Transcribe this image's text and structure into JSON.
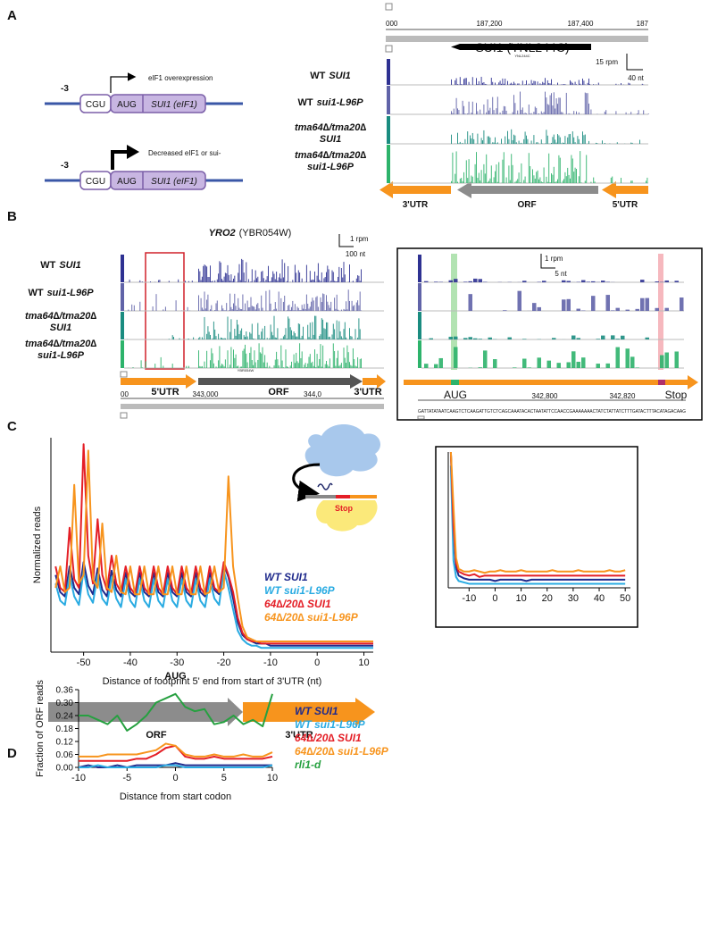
{
  "panel_a": {
    "label": "A",
    "constructs": [
      {
        "position": "-3",
        "boxes": [
          "CGU",
          "AUG",
          "SUI1 (eIF1)"
        ],
        "arrow_label": "eIF1 overexpression"
      },
      {
        "position": "-3",
        "boxes": [
          "CGU",
          "AUG",
          "SUI1 (eIF1)"
        ],
        "arrow_label": "Decreased eIF1 or sui-"
      }
    ],
    "browser": {
      "ruler": [
        "000",
        "187,200",
        "187,400",
        "187"
      ],
      "gene": "SUI1 (YNL244C)",
      "gene_id": "YNL244C",
      "scale_y": "15 rpm",
      "scale_x": "40 nt"
    },
    "regions": [
      "3'UTR",
      "ORF",
      "5'UTR"
    ]
  },
  "strains": [
    {
      "strain": "WT",
      "allele": "SUI1"
    },
    {
      "strain": "WT",
      "allele": "sui1-L96P"
    },
    {
      "strain": "tma64∆/tma20∆",
      "allele": "SUI1"
    },
    {
      "strain": "tma64∆/tma20∆",
      "allele": "sui1-L96P"
    }
  ],
  "panel_b": {
    "label": "B",
    "title_gene": "YRO2",
    "title_id": "(YBR054W)",
    "scale_y": "1 rpm",
    "scale_x": "100 nt",
    "gene_id": "YBR054W",
    "regions": [
      "5'UTR",
      "ORF",
      "3'UTR"
    ],
    "ruler": [
      "00",
      "343,000",
      "344,0"
    ],
    "inset": {
      "scale_y": "1 rpm",
      "scale_x": "5 nt",
      "start": "AUG",
      "stop": "Stop",
      "ruler": [
        "342,800",
        "342,820"
      ],
      "sequence": "GATTATATAATCAAGTCTCAAGATTGTCTCAGCAAATACACTAATATTCCAACCGAAAAAAACTATCTATTATCTTTGATACTTTACATAGACAAG"
    }
  },
  "panel_c": {
    "label": "C",
    "stop": "Stop",
    "regions": [
      "ORF",
      "3'UTR"
    ]
  },
  "panel_d": {
    "label": "D"
  },
  "chart_data": [
    {
      "type": "line",
      "y_label": "Normalized reads",
      "x_label": "Distance of footprint 5' end from start of 3'UTR (nt)",
      "xlim": [
        -57,
        12
      ],
      "ylim": [
        0,
        100
      ],
      "xticks": [
        -50,
        -40,
        -30,
        -20,
        -10,
        0,
        10
      ],
      "x": [
        -56,
        -55,
        -54,
        -53,
        -52,
        -51,
        -50,
        -49,
        -48,
        -47,
        -46,
        -45,
        -44,
        -43,
        -42,
        -41,
        -40,
        -39,
        -38,
        -37,
        -36,
        -35,
        -34,
        -33,
        -32,
        -31,
        -30,
        -29,
        -28,
        -27,
        -26,
        -25,
        -24,
        -23,
        -22,
        -21,
        -20,
        -19,
        -18,
        -17,
        -16,
        -15,
        -14,
        -13,
        -12,
        -11,
        -10,
        -9,
        -8,
        -7,
        -6,
        -5,
        -4,
        -3,
        -2,
        -1,
        0,
        1,
        2,
        3,
        4,
        5,
        6,
        7,
        8,
        9,
        10,
        11,
        12
      ],
      "series": [
        {
          "name": "WT SUI1",
          "color": "#1f2a8c",
          "values": [
            36,
            28,
            26,
            40,
            30,
            27,
            42,
            31,
            27,
            39,
            29,
            26,
            38,
            29,
            26,
            37,
            28,
            26,
            37,
            28,
            26,
            37,
            28,
            26,
            37,
            28,
            26,
            37,
            28,
            26,
            37,
            28,
            26,
            37,
            29,
            27,
            41,
            35,
            25,
            14,
            8,
            6,
            5,
            4,
            4,
            4,
            3,
            3,
            3,
            3,
            3,
            3,
            3,
            3,
            3,
            3,
            3,
            3,
            3,
            3,
            3,
            3,
            3,
            3,
            3,
            3,
            3,
            3,
            3
          ]
        },
        {
          "name": "WT sui1-L96P",
          "color": "#29abe2",
          "values": [
            32,
            24,
            22,
            36,
            26,
            22,
            38,
            27,
            23,
            36,
            25,
            22,
            35,
            25,
            21,
            34,
            24,
            21,
            34,
            24,
            21,
            34,
            24,
            21,
            34,
            24,
            21,
            34,
            24,
            21,
            34,
            24,
            21,
            34,
            25,
            22,
            38,
            30,
            20,
            10,
            6,
            4,
            3,
            3,
            2,
            2,
            2,
            2,
            2,
            2,
            2,
            2,
            2,
            2,
            2,
            2,
            2,
            2,
            2,
            2,
            2,
            2,
            2,
            2,
            2,
            2,
            2,
            2,
            2
          ]
        },
        {
          "name": "64∆/20∆ SUI1",
          "color": "#e41e26",
          "values": [
            40,
            30,
            28,
            58,
            34,
            30,
            97,
            45,
            32,
            62,
            36,
            29,
            45,
            32,
            28,
            40,
            30,
            27,
            40,
            30,
            27,
            40,
            30,
            27,
            40,
            30,
            27,
            40,
            30,
            27,
            40,
            30,
            27,
            40,
            30,
            28,
            42,
            36,
            28,
            16,
            9,
            6,
            5,
            5,
            4,
            4,
            4,
            4,
            4,
            4,
            4,
            4,
            4,
            4,
            4,
            4,
            4,
            4,
            4,
            4,
            4,
            4,
            4,
            4,
            4,
            4,
            4,
            4,
            4
          ]
        },
        {
          "name": "64∆/20∆ sui1-L96P",
          "color": "#f7941d",
          "values": [
            30,
            40,
            28,
            30,
            78,
            32,
            36,
            94,
            34,
            30,
            60,
            30,
            28,
            45,
            28,
            27,
            40,
            27,
            27,
            40,
            27,
            27,
            40,
            27,
            27,
            40,
            27,
            27,
            40,
            27,
            27,
            40,
            27,
            28,
            40,
            28,
            30,
            82,
            40,
            25,
            12,
            7,
            6,
            5,
            5,
            5,
            5,
            5,
            5,
            5,
            5,
            5,
            5,
            5,
            5,
            5,
            5,
            5,
            5,
            5,
            5,
            5,
            5,
            5,
            5,
            5,
            5,
            5,
            5
          ]
        }
      ]
    },
    {
      "type": "line",
      "xlim": [
        -18,
        52
      ],
      "ylim": [
        0,
        100
      ],
      "xticks": [
        -10,
        0,
        10,
        20,
        30,
        40,
        50
      ],
      "x": [
        -17,
        -16,
        -15,
        -14,
        -12,
        -10,
        -8,
        -6,
        -4,
        -2,
        0,
        2,
        4,
        6,
        8,
        10,
        12,
        14,
        16,
        18,
        20,
        22,
        24,
        26,
        28,
        30,
        32,
        34,
        36,
        38,
        40,
        42,
        44,
        46,
        48,
        50
      ],
      "series": [
        {
          "color": "#1f2a8c",
          "values": [
            100,
            40,
            15,
            9,
            7,
            6,
            6,
            6,
            6,
            6,
            5,
            6,
            6,
            6,
            6,
            6,
            5,
            6,
            6,
            6,
            6,
            6,
            6,
            6,
            6,
            6,
            6,
            6,
            6,
            6,
            6,
            6,
            6,
            6,
            6,
            6
          ]
        },
        {
          "color": "#29abe2",
          "values": [
            90,
            20,
            8,
            5,
            4,
            3,
            3,
            3,
            3,
            3,
            3,
            3,
            3,
            3,
            3,
            3,
            3,
            3,
            3,
            3,
            3,
            3,
            3,
            3,
            3,
            3,
            3,
            3,
            3,
            3,
            3,
            3,
            3,
            3,
            3,
            3
          ]
        },
        {
          "color": "#e41e26",
          "values": [
            100,
            45,
            18,
            12,
            10,
            9,
            10,
            8,
            9,
            9,
            9,
            9,
            9,
            9,
            9,
            9,
            9,
            9,
            9,
            9,
            9,
            9,
            9,
            9,
            9,
            9,
            9,
            9,
            9,
            9,
            9,
            9,
            9,
            9,
            9,
            9
          ]
        },
        {
          "color": "#f7941d",
          "values": [
            100,
            60,
            22,
            14,
            12,
            12,
            13,
            12,
            11,
            12,
            12,
            13,
            12,
            12,
            12,
            13,
            12,
            12,
            12,
            12,
            12,
            13,
            12,
            12,
            12,
            12,
            13,
            12,
            12,
            12,
            12,
            12,
            13,
            12,
            12,
            13
          ]
        }
      ]
    },
    {
      "type": "line",
      "title": "AUG",
      "y_label": "Fraction of ORF reads",
      "x_label": "Distance from start codon",
      "xlim": [
        -10,
        10
      ],
      "ylim": [
        0,
        0.36
      ],
      "xticks": [
        -10,
        -5,
        0,
        5,
        10
      ],
      "yticks": [
        {
          "value": 0,
          "label": "0.00"
        },
        0.06,
        0.12,
        0.18,
        0.24,
        {
          "value": 0.3,
          "label": "0.30"
        },
        0.36
      ],
      "x": [
        -10,
        -9,
        -8,
        -7,
        -6,
        -5,
        -4,
        -3,
        -2,
        -1,
        0,
        1,
        2,
        3,
        4,
        5,
        6,
        7,
        8,
        9,
        10
      ],
      "series": [
        {
          "name": "WT SUI1",
          "color": "#1f2a8c",
          "values": [
            0,
            0.01,
            0,
            0,
            0.01,
            0,
            0.01,
            0.01,
            0.01,
            0.01,
            0.02,
            0.01,
            0.01,
            0.01,
            0.01,
            0.01,
            0.01,
            0.01,
            0.01,
            0.01,
            0.01
          ]
        },
        {
          "name": "WT sui1-L96P",
          "color": "#29abe2",
          "values": [
            0,
            0,
            0.01,
            0,
            0,
            0,
            0,
            0,
            0,
            0.01,
            0.01,
            0,
            0,
            0,
            0,
            0,
            0,
            0,
            0,
            0,
            0.01
          ]
        },
        {
          "name": "64∆/20∆ SUI1",
          "color": "#e41e26",
          "values": [
            0.03,
            0.03,
            0.03,
            0.03,
            0.03,
            0.03,
            0.04,
            0.04,
            0.06,
            0.09,
            0.1,
            0.05,
            0.04,
            0.04,
            0.05,
            0.04,
            0.04,
            0.04,
            0.04,
            0.04,
            0.05
          ]
        },
        {
          "name": "64∆/20∆ sui1-L96P",
          "color": "#f7941d",
          "values": [
            0.05,
            0.05,
            0.05,
            0.06,
            0.06,
            0.06,
            0.06,
            0.07,
            0.08,
            0.11,
            0.1,
            0.06,
            0.05,
            0.05,
            0.06,
            0.05,
            0.05,
            0.06,
            0.05,
            0.05,
            0.07
          ]
        },
        {
          "name": "rli1-d",
          "color": "#26a040",
          "values": [
            0.24,
            0.24,
            0.22,
            0.2,
            0.24,
            0.17,
            0.2,
            0.24,
            0.3,
            0.32,
            0.34,
            0.28,
            0.26,
            0.27,
            0.2,
            0.21,
            0.24,
            0.2,
            0.22,
            0.19,
            0.34
          ]
        }
      ]
    }
  ]
}
